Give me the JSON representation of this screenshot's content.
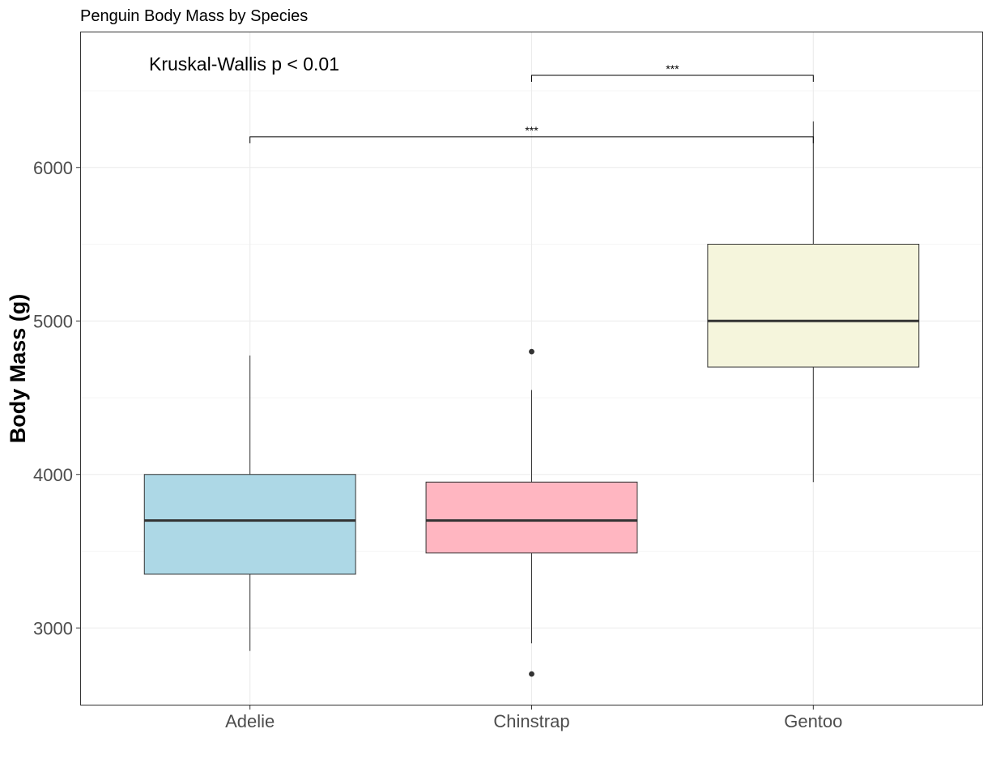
{
  "chart_data": {
    "type": "boxplot",
    "title": "Penguin Body Mass by Species",
    "xlabel": "",
    "ylabel": "Body Mass (g)",
    "ylim": [
      2500,
      6880
    ],
    "y_ticks": [
      3000,
      4000,
      5000,
      6000
    ],
    "grid": true,
    "legend": "none",
    "categories": [
      "Adelie",
      "Chinstrap",
      "Gentoo"
    ],
    "boxes": [
      {
        "category": "Adelie",
        "min": 2850,
        "q1": 3350,
        "median": 3700,
        "q3": 4000,
        "max": 4775,
        "outliers": [],
        "fill": "#add8e6"
      },
      {
        "category": "Chinstrap",
        "min": 2900,
        "q1": 3488,
        "median": 3700,
        "q3": 3950,
        "max": 4550,
        "outliers": [
          4800,
          2700
        ],
        "fill": "#ffb6c1"
      },
      {
        "category": "Gentoo",
        "min": 3950,
        "q1": 4700,
        "median": 5000,
        "q3": 5500,
        "max": 6300,
        "outliers": [],
        "fill": "#f5f5dc"
      }
    ],
    "annotation": "Kruskal-Wallis p < 0.01",
    "comparisons": [
      {
        "from": "Adelie",
        "to": "Gentoo",
        "y": 6200,
        "label": "***"
      },
      {
        "from": "Chinstrap",
        "to": "Gentoo",
        "y": 6600,
        "label": "***"
      }
    ]
  }
}
